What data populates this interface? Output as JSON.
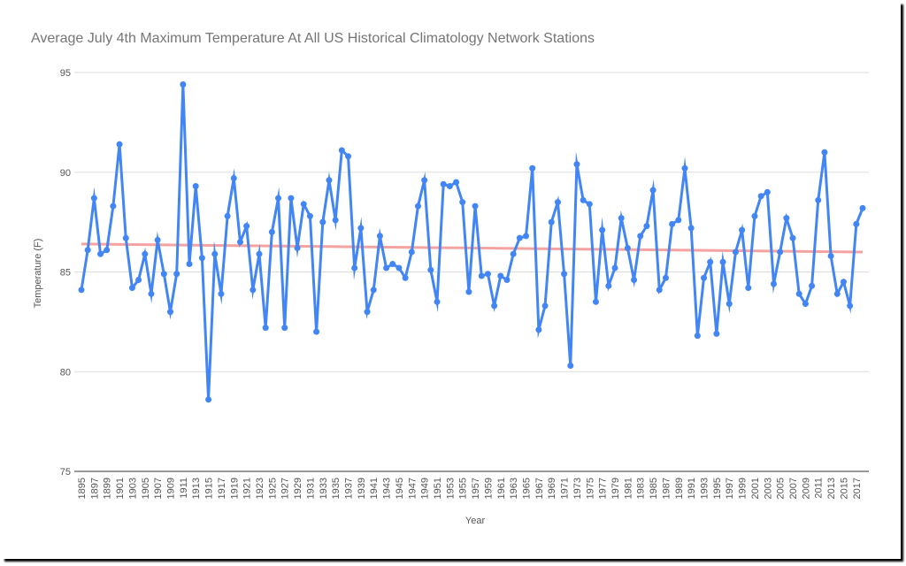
{
  "chart_data": {
    "type": "line",
    "title": "Average July 4th Maximum Temperature At All US Historical Climatology Network Stations",
    "x_label": "Year",
    "y_label": "Temperature (F)",
    "x": [
      1895,
      1896,
      1897,
      1898,
      1899,
      1900,
      1901,
      1902,
      1903,
      1904,
      1905,
      1906,
      1907,
      1908,
      1909,
      1910,
      1911,
      1912,
      1913,
      1914,
      1915,
      1916,
      1917,
      1918,
      1919,
      1920,
      1921,
      1922,
      1923,
      1924,
      1925,
      1926,
      1927,
      1928,
      1929,
      1930,
      1931,
      1932,
      1933,
      1934,
      1935,
      1936,
      1937,
      1938,
      1939,
      1940,
      1941,
      1942,
      1943,
      1944,
      1945,
      1946,
      1947,
      1948,
      1949,
      1950,
      1951,
      1952,
      1953,
      1954,
      1955,
      1956,
      1957,
      1958,
      1959,
      1960,
      1961,
      1962,
      1963,
      1964,
      1965,
      1966,
      1967,
      1968,
      1969,
      1970,
      1971,
      1972,
      1973,
      1974,
      1975,
      1976,
      1977,
      1978,
      1979,
      1980,
      1981,
      1982,
      1983,
      1984,
      1985,
      1986,
      1987,
      1988,
      1989,
      1990,
      1991,
      1992,
      1993,
      1994,
      1995,
      1996,
      1997,
      1998,
      1999,
      2000,
      2001,
      2002,
      2003,
      2004,
      2005,
      2006,
      2007,
      2008,
      2009,
      2010,
      2011,
      2012,
      2013,
      2014,
      2015,
      2016,
      2017,
      2018
    ],
    "values": [
      84.1,
      86.1,
      88.7,
      85.9,
      86.1,
      88.3,
      91.4,
      86.7,
      84.2,
      84.6,
      85.9,
      83.9,
      86.6,
      84.9,
      83.0,
      84.9,
      94.4,
      85.4,
      89.3,
      85.7,
      78.6,
      85.9,
      83.9,
      87.8,
      89.7,
      86.5,
      87.3,
      84.1,
      85.9,
      82.2,
      87.0,
      88.7,
      82.2,
      88.7,
      86.2,
      88.4,
      87.8,
      82.0,
      87.5,
      89.6,
      87.6,
      91.1,
      90.8,
      85.2,
      87.2,
      83.0,
      84.1,
      86.8,
      85.2,
      85.4,
      85.2,
      84.7,
      86.0,
      88.3,
      89.6,
      85.1,
      83.5,
      89.4,
      89.3,
      89.5,
      88.5,
      84.0,
      88.3,
      84.8,
      84.9,
      83.3,
      84.8,
      84.6,
      85.9,
      86.7,
      86.8,
      90.2,
      82.1,
      83.3,
      87.5,
      88.5,
      84.9,
      80.3,
      90.4,
      88.6,
      88.4,
      83.5,
      87.1,
      84.3,
      85.2,
      87.7,
      86.2,
      84.6,
      86.8,
      87.3,
      89.1,
      84.1,
      84.7,
      87.4,
      87.6,
      90.2,
      87.2,
      81.8,
      84.7,
      85.5,
      81.9,
      85.5,
      83.4,
      86.0,
      87.1,
      84.2,
      87.8,
      88.8,
      89.0,
      84.4,
      86.0,
      87.7,
      86.7,
      83.9,
      83.4,
      84.3,
      88.6,
      91.0,
      85.8,
      83.9,
      84.5,
      83.3,
      87.4,
      88.2
    ],
    "color": "#4285f4",
    "trendline": {
      "color": "#f4a3a0",
      "values": [
        86.4,
        86.0
      ]
    },
    "xlim": [
      1895,
      2018
    ],
    "xticks": [
      1895,
      1897,
      1899,
      1901,
      1903,
      1905,
      1907,
      1909,
      1911,
      1913,
      1915,
      1917,
      1919,
      1921,
      1923,
      1925,
      1927,
      1929,
      1931,
      1933,
      1935,
      1937,
      1939,
      1941,
      1943,
      1945,
      1947,
      1949,
      1951,
      1953,
      1955,
      1957,
      1959,
      1961,
      1963,
      1965,
      1967,
      1969,
      1971,
      1973,
      1975,
      1977,
      1979,
      1981,
      1983,
      1985,
      1987,
      1989,
      1991,
      1993,
      1995,
      1997,
      1999,
      2001,
      2003,
      2005,
      2007,
      2009,
      2011,
      2013,
      2015,
      2017
    ],
    "ylim": [
      75,
      95
    ],
    "yticks": [
      75,
      80,
      85,
      90,
      95
    ],
    "grid": true
  }
}
